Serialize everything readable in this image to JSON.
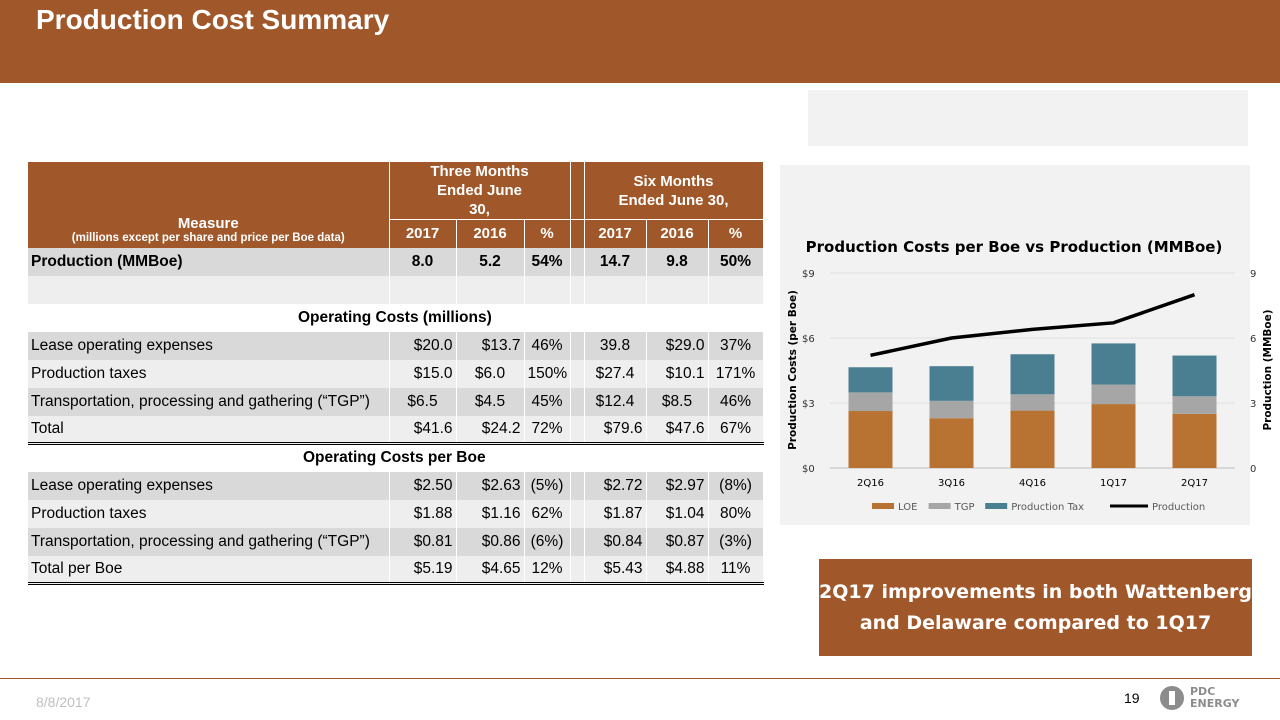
{
  "header": {
    "title": "Production Cost Summary"
  },
  "table": {
    "measure_label": "Measure",
    "measure_sub": "(millions except per share and price per Boe data)",
    "group1": "Three Months Ended June 30,",
    "group2": "Six Months Ended June 30,",
    "col_headers": [
      "2017",
      "2016",
      "%",
      "2017",
      "2016",
      "%"
    ],
    "production": {
      "label": "Production (MMBoe)",
      "values": [
        "8.0",
        "5.2",
        "54%",
        "14.7",
        "9.8",
        "50%"
      ]
    },
    "section1": "Operating Costs (millions)",
    "rows1": [
      {
        "label": "Lease operating expenses",
        "values": [
          "$20.0",
          "$13.7",
          "46%",
          "39.8",
          "$29.0",
          "37%"
        ]
      },
      {
        "label": "Production taxes",
        "values": [
          "$15.0",
          "$6.0",
          "150%",
          "$27.4",
          "$10.1",
          "171%"
        ]
      },
      {
        "label": "Transportation, processing and gathering (“TGP”)",
        "values": [
          "$6.5",
          "$4.5",
          "45%",
          "$12.4",
          "$8.5",
          "46%"
        ]
      },
      {
        "label": "Total",
        "values": [
          "$41.6",
          "$24.2",
          "72%",
          "$79.6",
          "$47.6",
          "67%"
        ]
      }
    ],
    "section2": "Operating Costs per Boe",
    "rows2": [
      {
        "label": "Lease operating expenses",
        "values": [
          "$2.50",
          "$2.63",
          "(5%)",
          "$2.72",
          "$2.97",
          "(8%)"
        ]
      },
      {
        "label": "Production taxes",
        "values": [
          "$1.88",
          "$1.16",
          "62%",
          "$1.87",
          "$1.04",
          "80%"
        ]
      },
      {
        "label": "Transportation, processing and gathering (“TGP”)",
        "values": [
          "$0.81",
          "$0.86",
          "(6%)",
          "$0.84",
          "$0.87",
          "(3%)"
        ]
      },
      {
        "label": "Total per Boe",
        "values": [
          "$5.19",
          "$4.65",
          "12%",
          "$5.43",
          "$4.88",
          "11%"
        ]
      }
    ]
  },
  "chart_data": {
    "type": "bar",
    "stacked": true,
    "title": "Production Costs per Boe vs Production (MMBoe)",
    "ylabel": "Production Costs (per Boe)",
    "y2label": "Production (MMBoe)",
    "categories": [
      "2Q16",
      "3Q16",
      "4Q16",
      "1Q17",
      "2Q17"
    ],
    "ylim": [
      0,
      9
    ],
    "yticks": [
      "$0",
      "$3",
      "$6",
      "$9"
    ],
    "y2lim": [
      0,
      9
    ],
    "y2ticks": [
      "0",
      "3",
      "6",
      "9"
    ],
    "series": [
      {
        "name": "LOE",
        "kind": "bar",
        "color": "#b87333",
        "values": [
          2.63,
          2.3,
          2.65,
          2.95,
          2.5
        ]
      },
      {
        "name": "TGP",
        "kind": "bar",
        "color": "#a6a6a6",
        "values": [
          0.86,
          0.8,
          0.75,
          0.9,
          0.81
        ]
      },
      {
        "name": "Production Tax",
        "kind": "bar",
        "color": "#4a7f91",
        "values": [
          1.16,
          1.6,
          1.85,
          1.9,
          1.88
        ]
      },
      {
        "name": "Production",
        "kind": "line",
        "axis": "y2",
        "color": "#000000",
        "values": [
          5.2,
          6.0,
          6.4,
          6.7,
          8.0
        ]
      }
    ],
    "legend_position": "bottom"
  },
  "callout": {
    "line1": "2Q17 improvements in both Wattenberg",
    "line2": "and Delaware compared to 1Q17"
  },
  "footer": {
    "date": "8/8/2017",
    "page": "19",
    "logo_line1": "PDC",
    "logo_line2": "ENERGY"
  }
}
